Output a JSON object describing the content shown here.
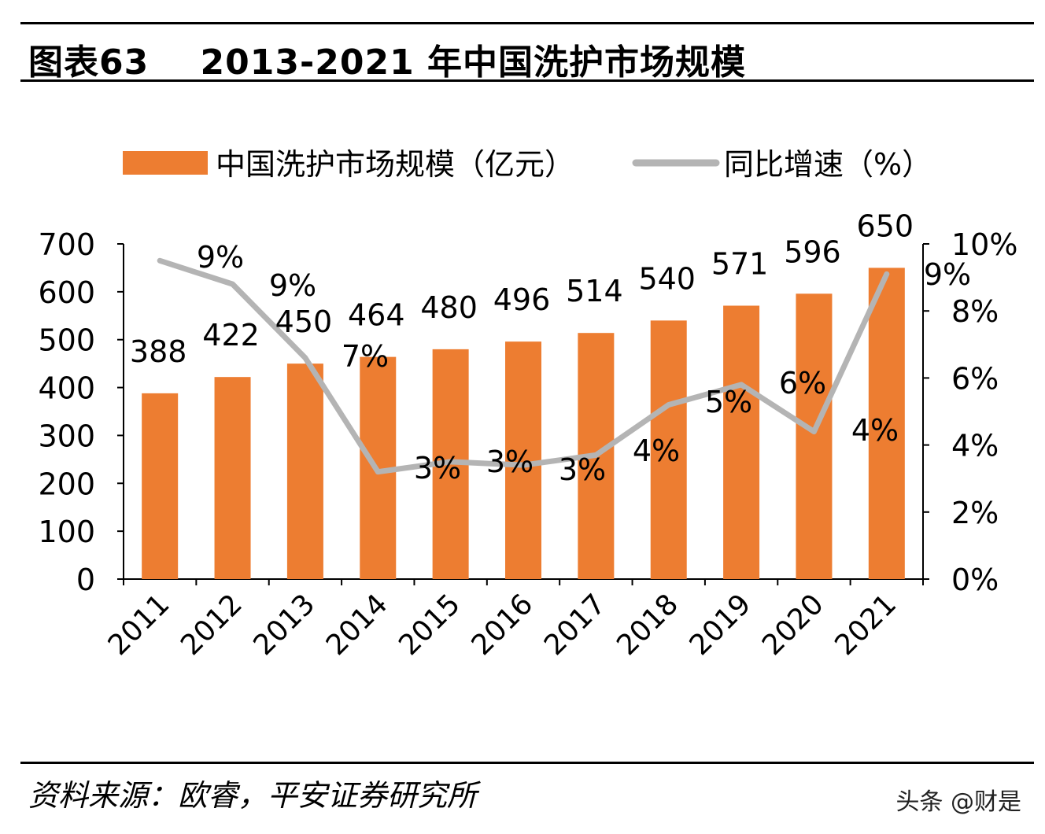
{
  "header": {
    "figure_no": "图表63",
    "title": "2013-2021 年中国洗护市场规模"
  },
  "footer": {
    "source": "资料来源：欧睿，平安证券研究所",
    "watermark": "头条 @财是"
  },
  "colors": {
    "bar": "#ED7D31",
    "line": "#B4B4B4",
    "axis": "#000000"
  },
  "chart_data": {
    "type": "bar+line",
    "title": "2013-2021 年中国洗护市场规模",
    "categories": [
      "2011",
      "2012",
      "2013",
      "2014",
      "2015",
      "2016",
      "2017",
      "2018",
      "2019",
      "2020",
      "2021"
    ],
    "series": [
      {
        "name": "中国洗护市场规模（亿元）",
        "type": "bar",
        "axis": "left",
        "values": [
          388,
          422,
          450,
          464,
          480,
          496,
          514,
          540,
          571,
          596,
          650
        ],
        "labels": [
          "388",
          "422",
          "450",
          "464",
          "480",
          "496",
          "514",
          "540",
          "571",
          "596",
          "650"
        ]
      },
      {
        "name": "同比增速（%）",
        "type": "line",
        "axis": "right",
        "values": [
          9.5,
          8.8,
          6.6,
          3.2,
          3.5,
          3.4,
          3.7,
          5.2,
          5.8,
          4.4,
          9.1
        ],
        "labels": [
          "9%",
          "9%",
          "7%",
          "3%",
          "3%",
          "3%",
          "4%",
          "5%",
          "6%",
          "4%",
          "9%"
        ]
      }
    ],
    "y_left": {
      "min": 0,
      "max": 700,
      "ticks": [
        "0",
        "100",
        "200",
        "300",
        "400",
        "500",
        "600",
        "700"
      ]
    },
    "y_right": {
      "min": 0,
      "max": 10,
      "ticks": [
        "0%",
        "2%",
        "4%",
        "6%",
        "8%",
        "10%"
      ]
    },
    "legend": [
      "中国洗护市场规模（亿元）",
      "同比增速（%）"
    ],
    "legend_position": "top"
  }
}
